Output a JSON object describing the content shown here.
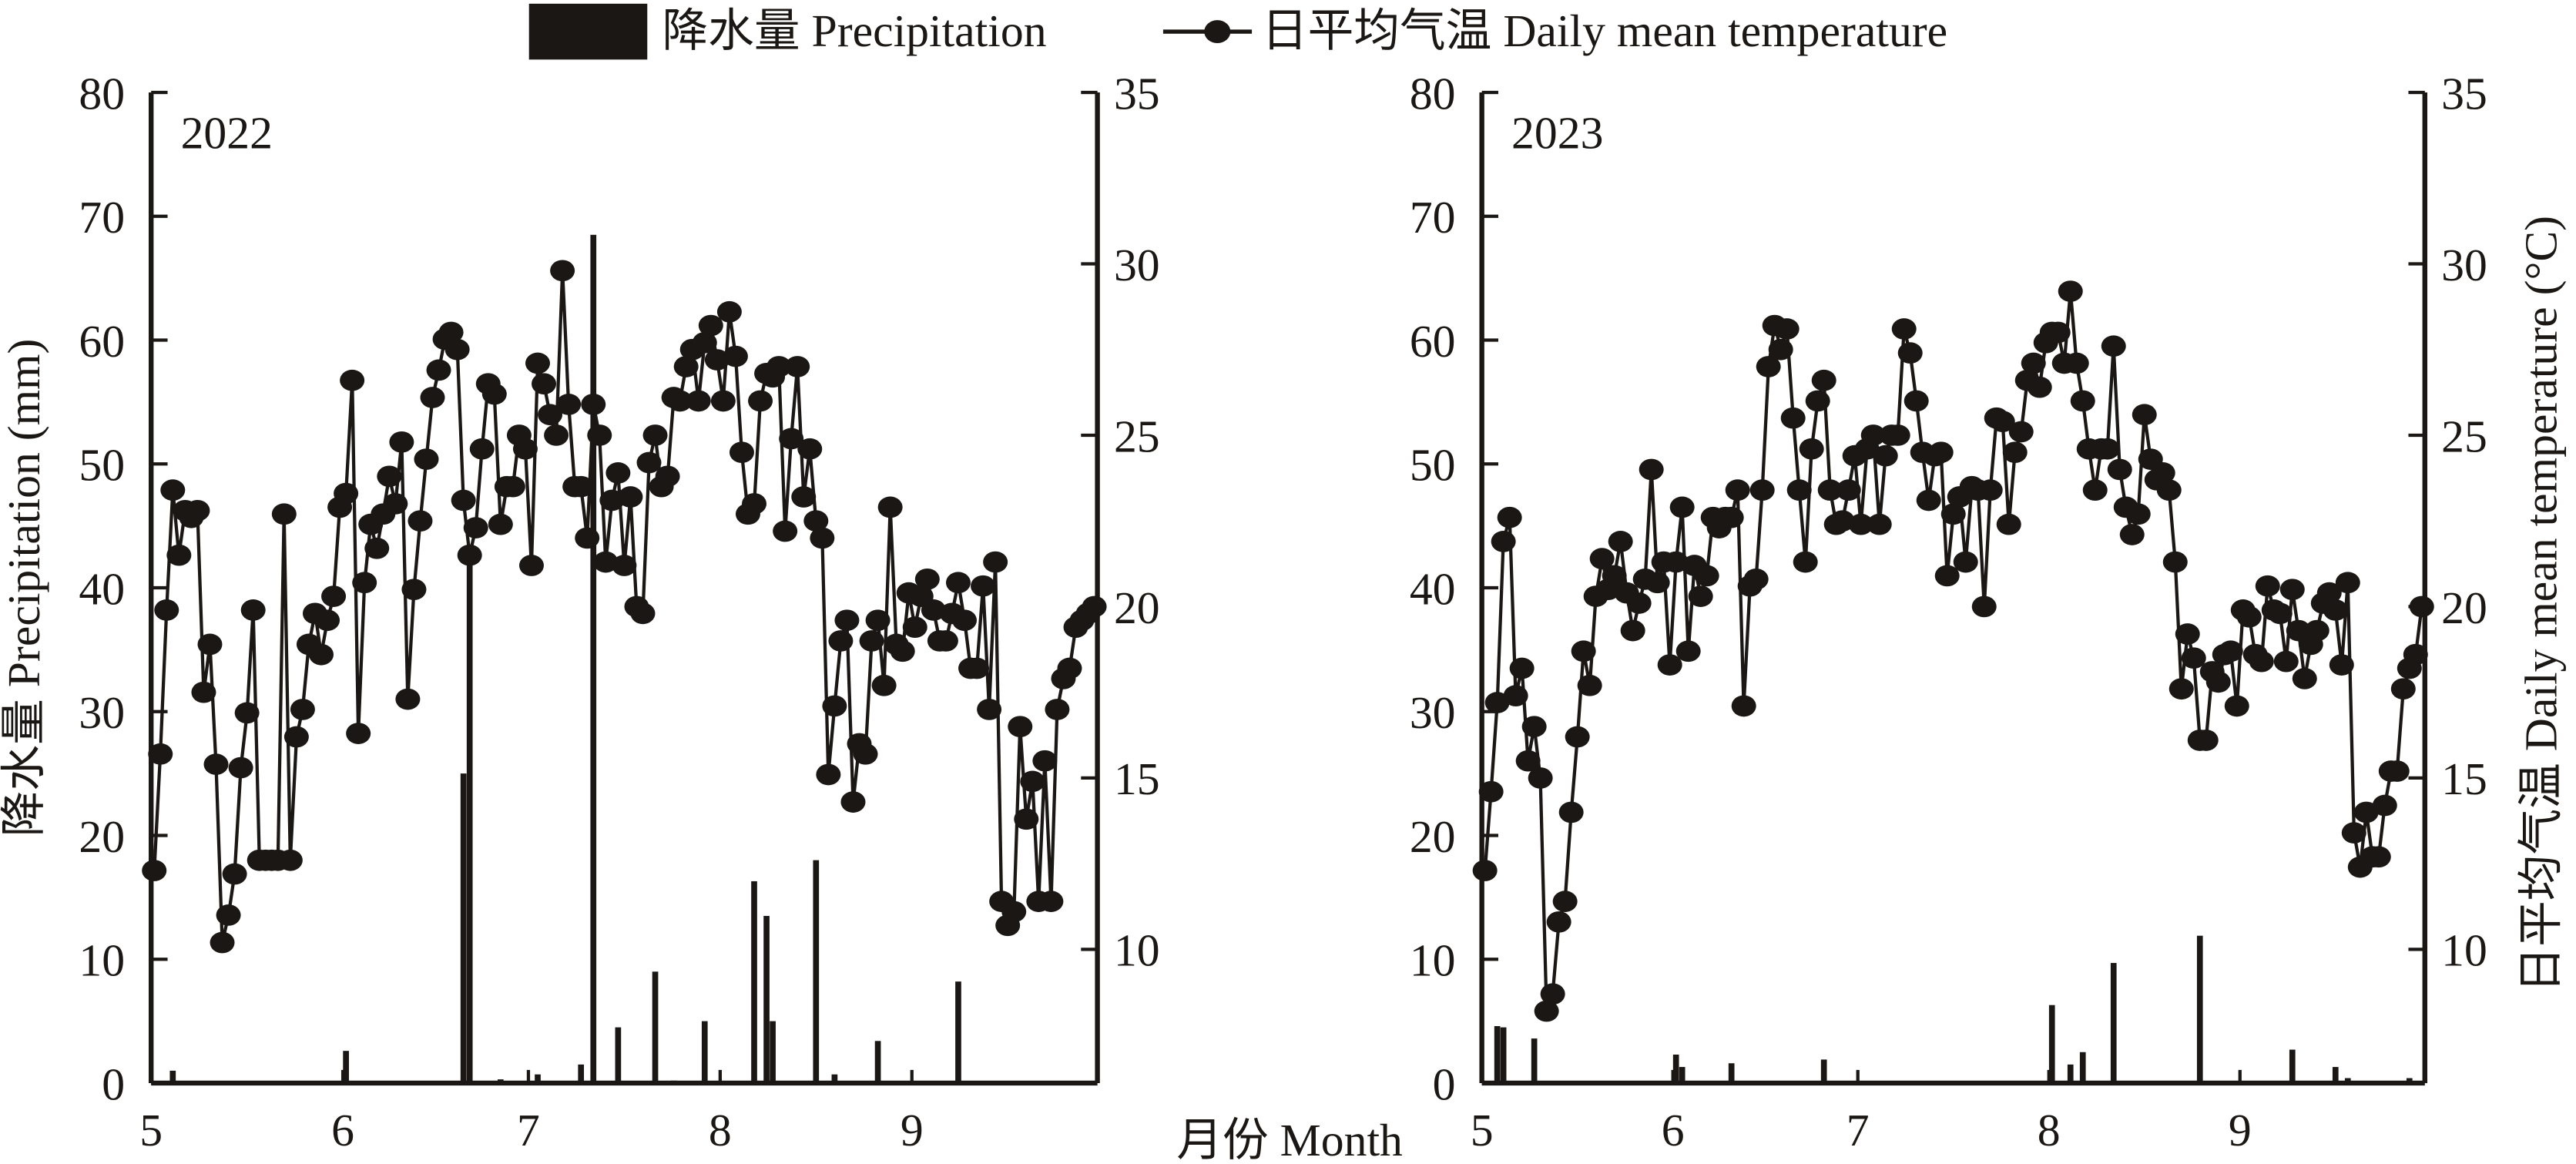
{
  "legend": {
    "precip_label": "降水量 Precipitation",
    "temp_label": "日平均气温 Daily mean temperature"
  },
  "xlabel": "月份 Month",
  "colors": {
    "ink": "#1a1714",
    "background": "#ffffff"
  },
  "chart_data": [
    {
      "type": "bar+line",
      "title": "2022",
      "start_date": "05-01",
      "x_ticks": [
        "5",
        "6",
        "7",
        "8",
        "9"
      ],
      "ylabel_left": "降水量 Precipitation (mm)",
      "ylabel_right": "",
      "ylim_left": [
        0,
        80
      ],
      "yticks_left": [
        "0",
        "10",
        "20",
        "30",
        "40",
        "50",
        "60",
        "70",
        "80"
      ],
      "ylim_right": [
        6.1,
        35
      ],
      "yticks_right": [
        "10",
        "15",
        "20",
        "25",
        "30",
        "35"
      ],
      "precipitation_mm": [
        {
          "day": 3,
          "value": 1.0
        },
        {
          "day": 31,
          "value": 2.6
        },
        {
          "day": 50,
          "value": 25.0
        },
        {
          "day": 51,
          "value": 43.0
        },
        {
          "day": 56,
          "value": 0.3
        },
        {
          "day": 62,
          "value": 0.7
        },
        {
          "day": 69,
          "value": 1.5
        },
        {
          "day": 71,
          "value": 68.5
        },
        {
          "day": 75,
          "value": 4.5
        },
        {
          "day": 81,
          "value": 9.0
        },
        {
          "day": 84,
          "value": 0.2
        },
        {
          "day": 89,
          "value": 5.0
        },
        {
          "day": 97,
          "value": 16.3
        },
        {
          "day": 99,
          "value": 13.5
        },
        {
          "day": 100,
          "value": 5.0
        },
        {
          "day": 107,
          "value": 18.0
        },
        {
          "day": 110,
          "value": 0.7
        },
        {
          "day": 117,
          "value": 3.4
        },
        {
          "day": 130,
          "value": 8.2
        }
      ],
      "temperature_c": [
        12.3,
        15.7,
        19.9,
        23.4,
        21.5,
        22.8,
        22.6,
        22.8,
        17.5,
        18.9,
        15.4,
        10.2,
        11.0,
        12.2,
        15.3,
        16.9,
        19.9,
        12.6,
        12.6,
        12.6,
        12.6,
        22.7,
        12.6,
        16.2,
        17.0,
        18.9,
        19.8,
        18.6,
        19.6,
        20.3,
        22.9,
        23.3,
        26.6,
        16.3,
        20.7,
        22.4,
        21.7,
        22.7,
        23.8,
        23.0,
        24.8,
        17.3,
        20.5,
        22.5,
        24.3,
        26.1,
        26.9,
        27.8,
        28.0,
        27.5,
        23.1,
        21.5,
        22.3,
        24.6,
        26.5,
        26.2,
        22.4,
        23.5,
        23.5,
        25.0,
        24.6,
        21.2,
        27.1,
        26.5,
        25.6,
        25.0,
        29.8,
        25.9,
        23.5,
        23.5,
        22.0,
        25.9,
        25.0,
        21.3,
        23.1,
        23.9,
        21.2,
        23.2,
        20.0,
        19.8,
        24.2,
        25.0,
        23.5,
        23.8,
        26.1,
        26.0,
        27.0,
        27.5,
        26.0,
        27.7,
        28.2,
        27.2,
        26.0,
        28.6,
        27.3,
        24.5,
        22.7,
        23.0,
        26.0,
        26.8,
        26.7,
        27.0,
        22.2,
        24.9,
        27.0,
        23.2,
        24.6,
        22.5,
        22.0,
        15.1,
        17.1,
        19.0,
        19.6,
        14.3,
        16.0,
        15.7,
        19.0,
        19.6,
        17.7,
        22.9,
        18.9,
        18.7,
        20.4,
        19.4,
        20.3,
        20.8,
        19.9,
        19.0,
        19.0,
        19.8,
        20.7,
        19.6,
        18.2,
        18.2,
        20.6,
        17.0,
        21.3,
        11.4,
        10.7,
        11.1,
        16.5,
        13.8,
        14.9,
        11.4,
        15.5,
        11.4,
        17.0,
        17.9,
        18.2,
        19.4,
        19.6,
        19.8,
        20.0
      ]
    },
    {
      "type": "bar+line",
      "title": "2023",
      "start_date": "05-01",
      "x_ticks": [
        "5",
        "6",
        "7",
        "8",
        "9"
      ],
      "ylabel_left": "",
      "ylabel_right": "日平均气温 Daily mean temperature (°C)",
      "ylim_left": [
        0,
        80
      ],
      "yticks_left": [
        "0",
        "10",
        "20",
        "30",
        "40",
        "50",
        "60",
        "70",
        "80"
      ],
      "ylim_right": [
        6.1,
        35
      ],
      "yticks_right": [
        "10",
        "15",
        "20",
        "25",
        "30",
        "35"
      ],
      "precipitation_mm": [
        {
          "day": 2,
          "value": 4.6
        },
        {
          "day": 3,
          "value": 4.5
        },
        {
          "day": 8,
          "value": 3.6
        },
        {
          "day": 31,
          "value": 2.3
        },
        {
          "day": 32,
          "value": 1.3
        },
        {
          "day": 40,
          "value": 1.6
        },
        {
          "day": 55,
          "value": 1.9
        },
        {
          "day": 92,
          "value": 6.3
        },
        {
          "day": 95,
          "value": 1.5
        },
        {
          "day": 97,
          "value": 2.5
        },
        {
          "day": 102,
          "value": 9.7
        },
        {
          "day": 116,
          "value": 11.9
        },
        {
          "day": 131,
          "value": 2.7
        },
        {
          "day": 138,
          "value": 1.3
        },
        {
          "day": 140,
          "value": 0.4
        },
        {
          "day": 150,
          "value": 0.4
        }
      ],
      "temperature_c": [
        12.3,
        14.6,
        17.2,
        21.9,
        22.6,
        17.4,
        18.2,
        15.5,
        16.5,
        15.0,
        8.2,
        8.7,
        10.8,
        11.4,
        14.0,
        16.2,
        18.7,
        17.7,
        20.3,
        21.4,
        20.5,
        20.9,
        21.9,
        20.4,
        19.3,
        20.1,
        20.8,
        24.0,
        20.7,
        21.3,
        18.3,
        21.3,
        22.9,
        18.7,
        21.2,
        20.3,
        20.9,
        22.6,
        22.3,
        22.6,
        22.6,
        23.4,
        17.1,
        20.6,
        20.8,
        23.4,
        27.0,
        28.2,
        27.5,
        28.1,
        25.5,
        23.4,
        21.3,
        24.6,
        26.0,
        26.6,
        23.4,
        22.4,
        22.5,
        23.4,
        24.4,
        22.4,
        24.6,
        25.0,
        22.4,
        24.4,
        25.0,
        25.0,
        28.1,
        27.4,
        26.0,
        24.5,
        23.1,
        24.4,
        24.5,
        20.9,
        22.7,
        23.2,
        21.3,
        23.5,
        23.4,
        20.0,
        23.4,
        25.5,
        25.4,
        22.4,
        24.5,
        25.1,
        26.6,
        27.1,
        26.4,
        27.7,
        28.0,
        28.0,
        27.1,
        29.2,
        27.1,
        26.0,
        24.6,
        23.4,
        24.6,
        24.6,
        27.6,
        24.0,
        22.9,
        22.1,
        22.7,
        25.6,
        24.3,
        23.7,
        23.9,
        23.4,
        21.3,
        17.6,
        19.2,
        18.5,
        16.1,
        16.1,
        18.1,
        17.8,
        18.6,
        18.7,
        17.1,
        19.9,
        19.7,
        18.6,
        18.4,
        20.6,
        19.9,
        19.8,
        18.4,
        20.5,
        19.3,
        17.9,
        18.9,
        19.3,
        20.1,
        20.4,
        19.9,
        18.3,
        20.7,
        13.4,
        12.4,
        14.0,
        12.7,
        12.7,
        14.2,
        15.2,
        15.2,
        17.6,
        18.2,
        18.6,
        20.0
      ]
    }
  ]
}
